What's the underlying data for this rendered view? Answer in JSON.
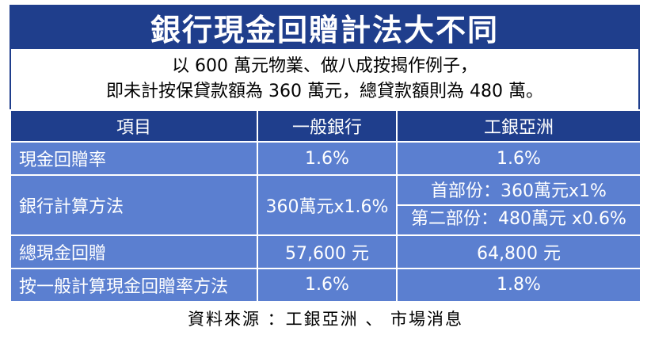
{
  "title": "銀行現金回贈計法大不同",
  "intro": {
    "line1": "以 600 萬元物業、做八成按揭作例子，",
    "line2": "即未計按保貸款額為 360 萬元，總貸款額則為 480 萬。"
  },
  "table": {
    "headers": [
      "項目",
      "一般銀行",
      "工銀亞洲"
    ],
    "rows": [
      {
        "label": "現金回贈率",
        "general": "1.6%",
        "icbc": "1.6%"
      },
      {
        "label": "銀行計算方法",
        "general": "360萬元x1.6%",
        "icbc_part1": "首部份：360萬元x1%",
        "icbc_part2": "第二部份：480萬元 x0.6%"
      },
      {
        "label": "總現金回贈",
        "general": "57,600 元",
        "icbc": "64,800 元"
      },
      {
        "label": "按一般計算現金回贈率方法",
        "general": "1.6%",
        "icbc": "1.8%"
      }
    ]
  },
  "source": "資料來源 ：工銀亞洲 、 市場消息",
  "colors": {
    "header_bg": "#1f3e8c",
    "cell_bg": "#5b7fd0",
    "text_on_color": "#ffffff"
  }
}
